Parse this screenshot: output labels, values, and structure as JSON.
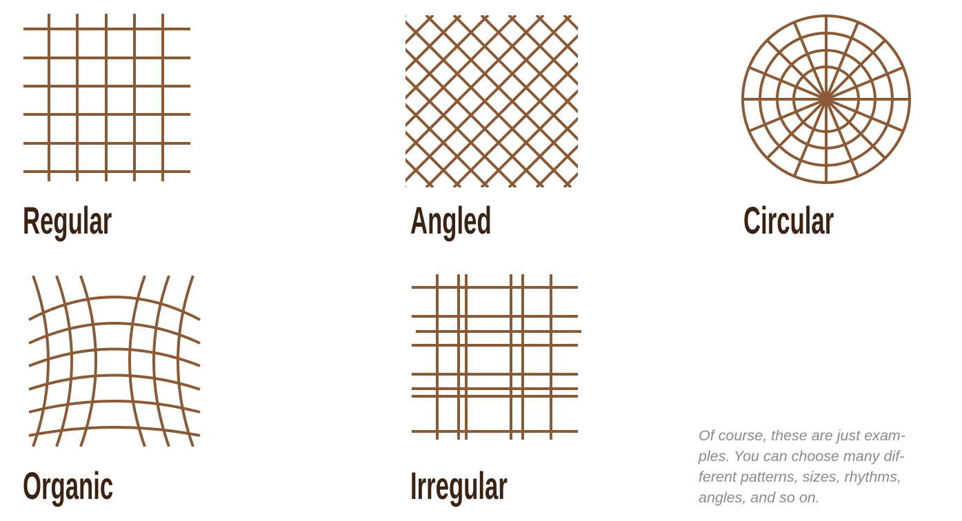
{
  "colors": {
    "pattern_stroke": "#8a5a36",
    "label_text": "#3b2314",
    "note_text": "#8a8a8a",
    "background": "#ffffff"
  },
  "patterns": {
    "regular": {
      "label": "Regular",
      "icon": "square-grid-icon"
    },
    "angled": {
      "label": "Angled",
      "icon": "diagonal-grid-icon"
    },
    "circular": {
      "label": "Circular",
      "icon": "radial-grid-icon"
    },
    "organic": {
      "label": "Organic",
      "icon": "curved-grid-icon"
    },
    "irregular": {
      "label": "Irregular",
      "icon": "uneven-grid-icon"
    }
  },
  "note": {
    "text": "Of course, these are just exam-\nples. You can choose many dif-\nferent patterns, sizes, rhythms,\nangles, and so on."
  }
}
